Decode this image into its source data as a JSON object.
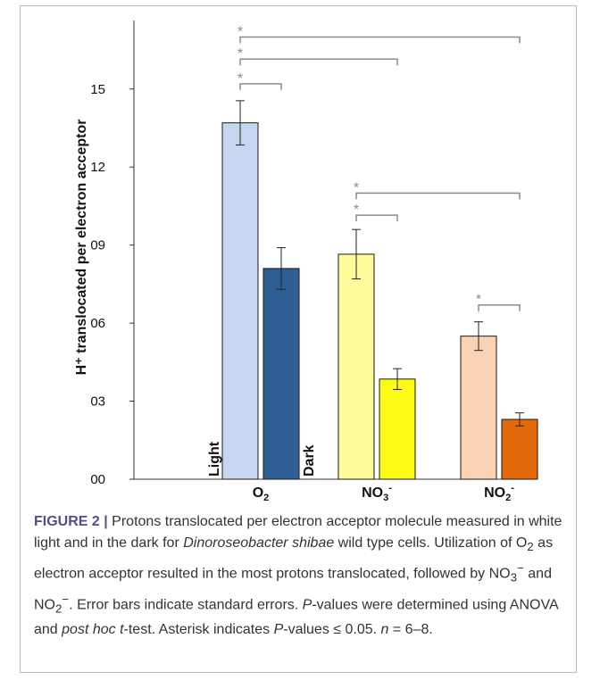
{
  "chart_data": {
    "type": "bar",
    "ylabel": "H⁺ translocated per electron acceptor",
    "ylim": [
      0,
      17.5
    ],
    "yticks": [
      0,
      3,
      6,
      9,
      12,
      15
    ],
    "ytick_labels": [
      "00",
      "03",
      "06",
      "09",
      "12",
      "15"
    ],
    "categories": [
      "O2",
      "NO3-",
      "NO2-"
    ],
    "category_labels": [
      {
        "base": "O",
        "sub": "2",
        "sup": ""
      },
      {
        "base": "NO",
        "sub": "3",
        "sup": "-"
      },
      {
        "base": "NO",
        "sub": "2",
        "sup": "-"
      }
    ],
    "series": [
      {
        "name": "Light",
        "values": [
          13.7,
          8.65,
          5.5
        ],
        "errors": [
          0.85,
          0.95,
          0.55
        ],
        "colors": [
          "#c5d6ee",
          "#fdfb9a",
          "#fad2b4"
        ]
      },
      {
        "name": "Dark",
        "values": [
          8.1,
          3.85,
          2.3
        ],
        "errors": [
          0.8,
          0.4,
          0.25
        ],
        "colors": [
          "#2f5e94",
          "#fdfb16",
          "#e36a0a"
        ]
      }
    ],
    "significance": [
      {
        "from": [
          0,
          0
        ],
        "to": [
          0,
          1
        ],
        "level": 15.2,
        "label": "*"
      },
      {
        "from": [
          0,
          0
        ],
        "to": [
          1,
          1
        ],
        "level": 16.15,
        "label": "*"
      },
      {
        "from": [
          0,
          0
        ],
        "to": [
          2,
          1
        ],
        "level": 17.0,
        "label": "*"
      },
      {
        "from": [
          1,
          0
        ],
        "to": [
          1,
          1
        ],
        "level": 10.15,
        "label": "*"
      },
      {
        "from": [
          1,
          0
        ],
        "to": [
          2,
          1
        ],
        "level": 11.0,
        "label": "*"
      },
      {
        "from": [
          2,
          0
        ],
        "to": [
          2,
          1
        ],
        "level": 6.7,
        "label": "*"
      }
    ],
    "series_labels": [
      "Light",
      "Dark"
    ]
  },
  "caption": {
    "label": "FIGURE 2",
    "separator": "|",
    "text_1": " Protons translocated per electron acceptor molecule measured in white light and in the dark for ",
    "species": "Dinoroseobacter shibae",
    "text_2": " wild type cells. Utilization of O",
    "o2_sub": "2",
    "text_3": " as electron acceptor resulted in the most protons translocated, followed by NO",
    "no3_sub": "3",
    "no3_sup": "−",
    "text_4": " and NO",
    "no2_sub": "2",
    "no2_sup": "−",
    "text_5": ". Error bars indicate standard errors. ",
    "p_italic": "P",
    "text_6": "-values were determined using ANOVA and ",
    "posthoc": "post hoc t",
    "text_7": "-test. Asterisk indicates ",
    "p_italic_2": "P",
    "text_8": "-values ≤ 0.05. ",
    "n_italic": "n",
    "text_9": " = 6–8."
  }
}
